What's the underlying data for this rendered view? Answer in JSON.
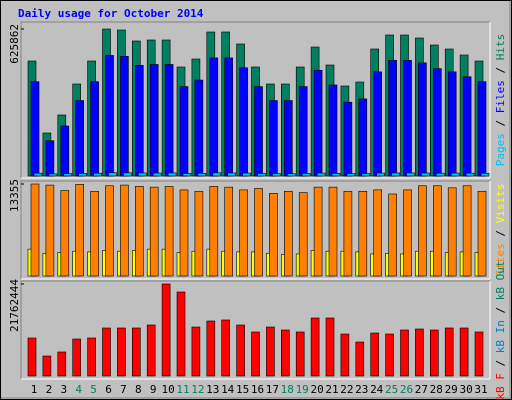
{
  "chart_data": [
    {
      "type": "bar",
      "title": "Daily usage for October 2014",
      "legend_separator": " / ",
      "ylim": [
        0,
        625862
      ],
      "yticks": [
        625862
      ],
      "series": [
        {
          "name": "Pages",
          "color": "#00c0ff",
          "values": [
            12000,
            9000,
            10000,
            11000,
            12000,
            14000,
            13500,
            13000,
            12500,
            13000,
            11000,
            11500,
            13500,
            13000,
            12500,
            11000,
            10500,
            10000,
            11000,
            12500,
            11500,
            10000,
            10500,
            12500,
            13000,
            13000,
            12500,
            12000,
            12500,
            12000,
            11500
          ]
        },
        {
          "name": "Files",
          "color": "#0000ff",
          "values": [
            401500,
            150200,
            213000,
            321200,
            401500,
            513200,
            509700,
            471300,
            474800,
            474800,
            380600,
            408400,
            502700,
            502700,
            460800,
            380600,
            321200,
            321200,
            380600,
            450300,
            387500,
            314200,
            328200,
            443400,
            492200,
            492200,
            481800,
            457300,
            443400,
            422500,
            401500
          ]
        },
        {
          "name": "Hits",
          "color": "#008060",
          "values": [
            489600,
            183100,
            259700,
            391700,
            489600,
            625862,
            621600,
            574800,
            579000,
            579000,
            464100,
            498100,
            613100,
            613100,
            562000,
            464100,
            391700,
            391700,
            464100,
            549200,
            472600,
            383200,
            400200,
            540700,
            600300,
            600300,
            587500,
            557700,
            540700,
            515200,
            489600
          ]
        }
      ]
    },
    {
      "type": "bar",
      "legend_separator": " / ",
      "ylim": [
        0,
        13355
      ],
      "yticks": [
        13355
      ],
      "series": [
        {
          "name": "Sites",
          "color": "#ff8000",
          "values": [
            13355,
            13200,
            12400,
            13300,
            12300,
            13100,
            13200,
            13000,
            12900,
            13000,
            12500,
            12300,
            13000,
            12900,
            12500,
            12700,
            12000,
            12300,
            12100,
            12900,
            12900,
            12300,
            12300,
            12500,
            11900,
            12500,
            13100,
            13100,
            12800,
            13100,
            12300
          ]
        },
        {
          "name": "Visits",
          "color": "#ffff00",
          "values": [
            3900,
            3300,
            3400,
            3600,
            3500,
            3700,
            3600,
            3700,
            3900,
            3900,
            3400,
            3600,
            3900,
            3600,
            3500,
            3500,
            3300,
            3100,
            3200,
            3700,
            3600,
            3600,
            3500,
            3200,
            3300,
            3200,
            3600,
            3600,
            3400,
            3500,
            3400
          ]
        }
      ]
    },
    {
      "type": "bar",
      "legend_separator": " / ",
      "ylim": [
        0,
        21762444
      ],
      "yticks": [
        21762444
      ],
      "categories": [
        "1",
        "2",
        "3",
        "4",
        "5",
        "6",
        "7",
        "8",
        "9",
        "10",
        "11",
        "12",
        "13",
        "14",
        "15",
        "16",
        "17",
        "18",
        "19",
        "20",
        "21",
        "22",
        "23",
        "24",
        "25",
        "26",
        "27",
        "28",
        "29",
        "30",
        "31"
      ],
      "category_colors": [
        "#000000",
        "#000000",
        "#000000",
        "#008060",
        "#008060",
        "#000000",
        "#000000",
        "#000000",
        "#000000",
        "#000000",
        "#008060",
        "#008060",
        "#000000",
        "#000000",
        "#000000",
        "#000000",
        "#000000",
        "#008060",
        "#008060",
        "#000000",
        "#000000",
        "#000000",
        "#000000",
        "#000000",
        "#008060",
        "#008060",
        "#000000",
        "#000000",
        "#000000",
        "#000000",
        "#000000"
      ],
      "series": [
        {
          "name": "kB F",
          "color": "#ff0000",
          "values": [
            8990000,
            4730000,
            5680000,
            8750000,
            8990000,
            11354000,
            11354000,
            11354000,
            12064000,
            21762444,
            19870000,
            11590000,
            13010000,
            13250000,
            12064000,
            10410000,
            11590000,
            10880000,
            10410000,
            13720000,
            13720000,
            9930000,
            8040000,
            10170000,
            9930000,
            10880000,
            11120000,
            10880000,
            11354000,
            11354000,
            10410000
          ]
        }
      ],
      "legend_extra": [
        {
          "name": "kB In",
          "color": "#0080c0"
        },
        {
          "name": "kB Out",
          "color": "#008060"
        }
      ]
    }
  ]
}
